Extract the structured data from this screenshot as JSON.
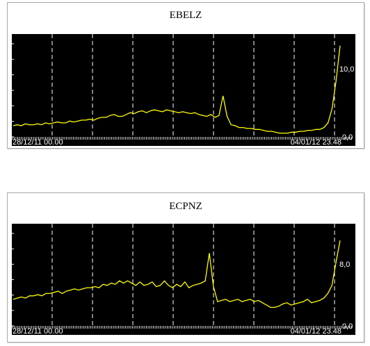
{
  "chart_data": [
    {
      "type": "line",
      "title": "EBELZ",
      "x_start_label": "28/12/11 00.00",
      "x_end_label": "04/01/12 23.48",
      "y_max_label": "10,0",
      "y_min_label": "0,0",
      "ylim": [
        0,
        10
      ],
      "grid": true,
      "line_color": "#ffff00",
      "background_color": "#000000",
      "values": [
        1.2,
        1.3,
        1.2,
        1.4,
        1.3,
        1.3,
        1.4,
        1.3,
        1.5,
        1.4,
        1.5,
        1.6,
        1.5,
        1.5,
        1.7,
        1.6,
        1.7,
        1.8,
        1.8,
        1.9,
        1.8,
        2.0,
        2.1,
        2.1,
        2.3,
        2.4,
        2.2,
        2.2,
        2.4,
        2.6,
        2.5,
        2.7,
        2.8,
        2.6,
        2.8,
        2.9,
        2.8,
        2.7,
        2.9,
        2.8,
        2.7,
        2.6,
        2.7,
        2.6,
        2.5,
        2.6,
        2.4,
        2.3,
        2.2,
        2.4,
        2.1,
        2.3,
        4.4,
        2.2,
        1.3,
        1.2,
        1.0,
        1.0,
        0.9,
        0.9,
        0.8,
        0.8,
        0.7,
        0.6,
        0.6,
        0.5,
        0.4,
        0.4,
        0.4,
        0.5,
        0.5,
        0.6,
        0.6,
        0.7,
        0.7,
        0.8,
        0.8,
        1.0,
        1.5,
        3.0,
        6.0,
        9.8
      ]
    },
    {
      "type": "line",
      "title": "ECPNZ",
      "x_start_label": "28/12/11 00.00",
      "x_end_label": "04/01/12 23.48",
      "y_max_label": "8,0",
      "y_min_label": "0,0",
      "ylim": [
        0,
        8
      ],
      "grid": true,
      "line_color": "#ffff00",
      "background_color": "#000000",
      "values": [
        2.3,
        2.4,
        2.5,
        2.4,
        2.6,
        2.6,
        2.7,
        2.6,
        2.8,
        2.8,
        2.9,
        3.0,
        2.8,
        3.0,
        3.1,
        3.2,
        3.1,
        3.2,
        3.3,
        3.3,
        3.4,
        3.3,
        3.6,
        3.5,
        3.7,
        3.6,
        3.9,
        3.7,
        3.9,
        3.7,
        3.5,
        3.8,
        3.5,
        3.6,
        3.8,
        3.4,
        3.5,
        3.9,
        3.5,
        3.3,
        3.6,
        3.4,
        3.8,
        3.3,
        3.5,
        3.6,
        3.7,
        3.9,
        6.3,
        3.4,
        2.1,
        2.2,
        2.3,
        2.1,
        2.2,
        2.3,
        2.1,
        2.2,
        2.3,
        2.1,
        2.2,
        2.0,
        1.8,
        1.6,
        1.6,
        1.7,
        1.9,
        2.0,
        1.8,
        1.9,
        2.0,
        2.1,
        2.3,
        2.0,
        2.1,
        2.2,
        2.4,
        2.8,
        3.5,
        5.5,
        7.4
      ]
    }
  ]
}
